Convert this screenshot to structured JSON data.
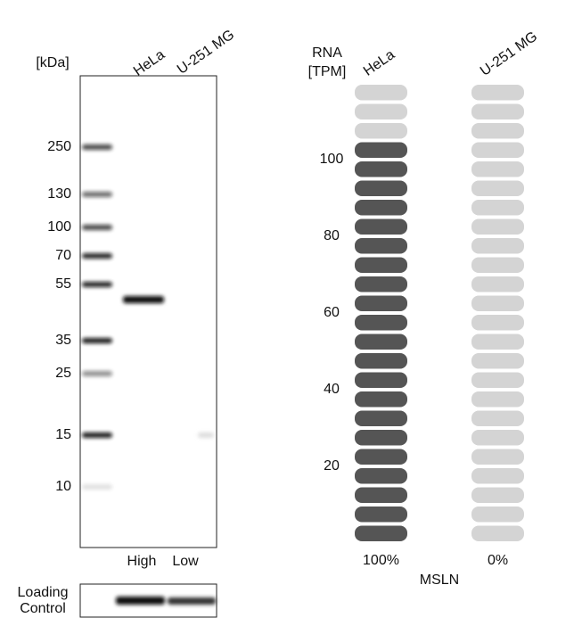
{
  "western_blot": {
    "unit_label": "[kDa]",
    "lanes": [
      "HeLa",
      "U-251 MG"
    ],
    "markers": [
      "250",
      "130",
      "100",
      "70",
      "55",
      "35",
      "25",
      "15",
      "10"
    ],
    "lane_levels": [
      "High",
      "Low"
    ],
    "loading_label": [
      "Loading",
      "Control"
    ]
  },
  "chart_data": {
    "type": "pill",
    "gene": "MSLN",
    "y_label": [
      "RNA",
      "[TPM]"
    ],
    "categories": [
      "HeLa",
      "U-251 MG"
    ],
    "values": [
      104,
      0
    ],
    "percent_labels": [
      "100%",
      "0%"
    ],
    "ylim": [
      0,
      120
    ],
    "yticks": [
      20,
      40,
      60,
      80,
      100
    ],
    "colors": {
      "filled": "#555555",
      "empty": "#d4d4d4"
    }
  }
}
